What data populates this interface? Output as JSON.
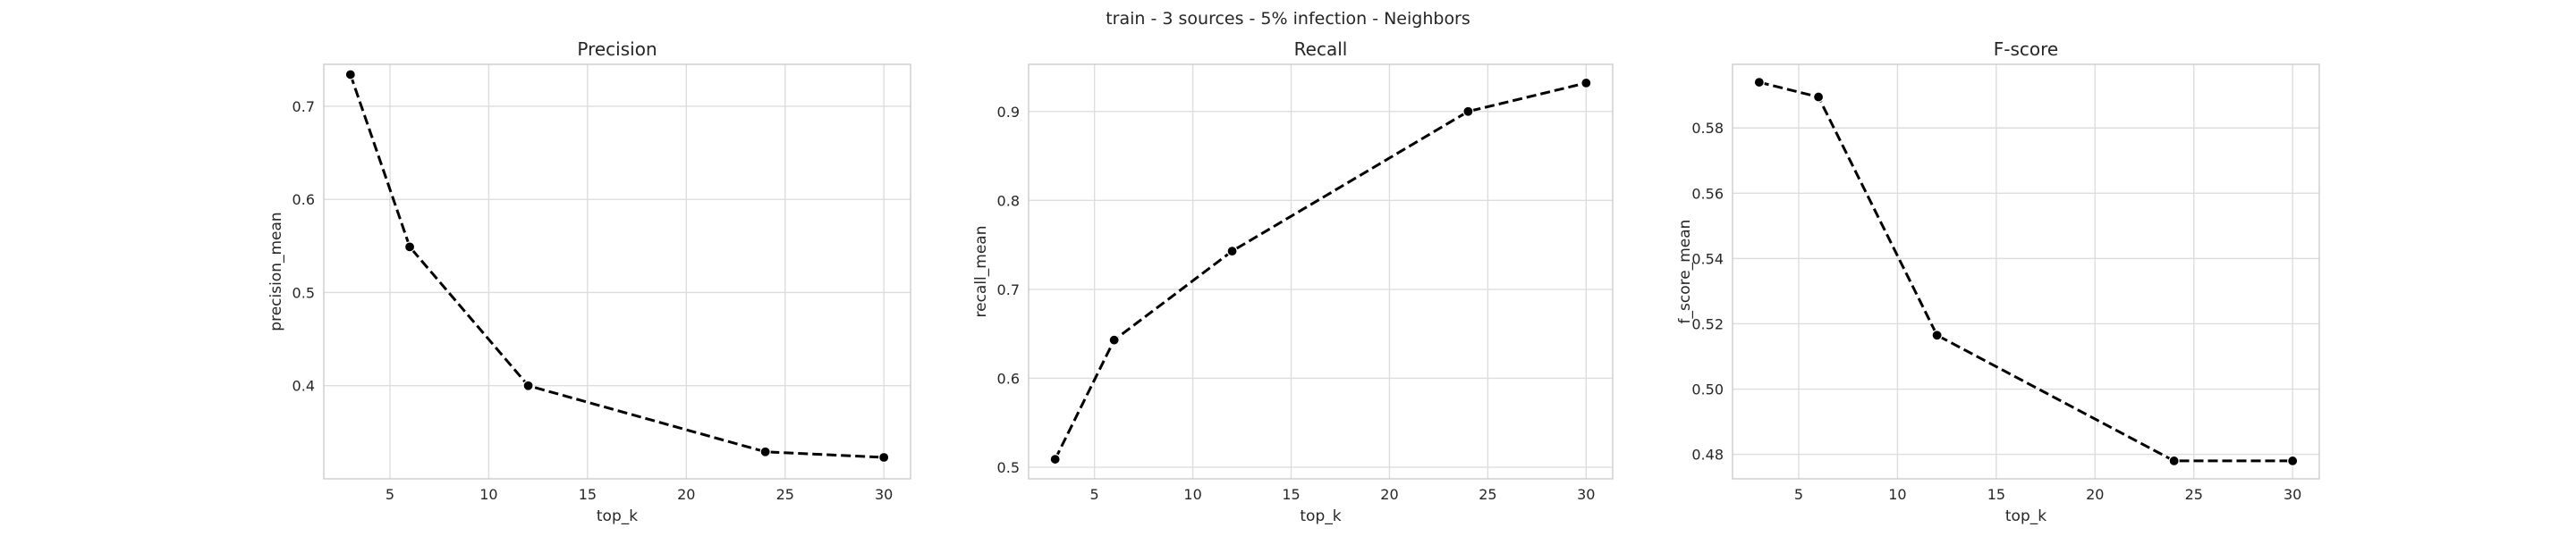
{
  "figure": {
    "suptitle": "train - 3 sources - 5% infection - Neighbors"
  },
  "chart_data": [
    {
      "type": "line",
      "title": "Precision",
      "xlabel": "top_k",
      "ylabel": "precision_mean",
      "x": [
        3,
        6,
        12,
        24,
        30
      ],
      "y": [
        0.734,
        0.549,
        0.4,
        0.329,
        0.323
      ],
      "xlim": [
        1.65,
        31.35
      ],
      "ylim": [
        0.3,
        0.745
      ],
      "xticks": [
        5,
        10,
        15,
        20,
        25,
        30
      ],
      "yticks": [
        0.4,
        0.5,
        0.6,
        0.7
      ],
      "ytick_decimals": 1,
      "line_style": "dashed",
      "marker": "circle",
      "color": "#000000",
      "grid": true
    },
    {
      "type": "line",
      "title": "Recall",
      "xlabel": "top_k",
      "ylabel": "recall_mean",
      "x": [
        3,
        6,
        12,
        24,
        30
      ],
      "y": [
        0.509,
        0.643,
        0.743,
        0.9,
        0.932
      ],
      "xlim": [
        1.65,
        31.35
      ],
      "ylim": [
        0.487,
        0.953
      ],
      "xticks": [
        5,
        10,
        15,
        20,
        25,
        30
      ],
      "yticks": [
        0.5,
        0.6,
        0.7,
        0.8,
        0.9
      ],
      "ytick_decimals": 1,
      "line_style": "dashed",
      "marker": "circle",
      "color": "#000000",
      "grid": true
    },
    {
      "type": "line",
      "title": "F-score",
      "xlabel": "top_k",
      "ylabel": "f_score_mean",
      "x": [
        3,
        6,
        12,
        24,
        30
      ],
      "y": [
        0.594,
        0.5895,
        0.5165,
        0.478,
        0.478
      ],
      "xlim": [
        1.65,
        31.35
      ],
      "ylim": [
        0.4725,
        0.5995
      ],
      "xticks": [
        5,
        10,
        15,
        20,
        25,
        30
      ],
      "yticks": [
        0.48,
        0.5,
        0.52,
        0.54,
        0.56,
        0.58
      ],
      "ytick_decimals": 2,
      "line_style": "dashed",
      "marker": "circle",
      "color": "#000000",
      "grid": true
    }
  ]
}
